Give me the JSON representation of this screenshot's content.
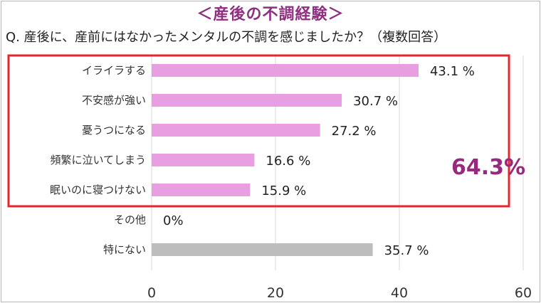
{
  "title": "＜産後の不調経験＞",
  "question": "Q.  産後に、産前にはなかったメンタルの不調を感じましたか？（複数回答）",
  "highlight": {
    "total_label": "64.3%",
    "box_color": "#e8242c",
    "text_color": "#962a7d"
  },
  "colors": {
    "primary_bar": "#e89ee0",
    "other_bar": "#bdbdbd",
    "title": "#8f2f80"
  },
  "chart_data": {
    "type": "bar",
    "orientation": "horizontal",
    "categories": [
      "イライラする",
      "不安感が強い",
      "憂うつになる",
      "頻繁に泣いてしまう",
      "眠いのに寝つけない",
      "その他",
      "特にない"
    ],
    "values": [
      43.1,
      30.7,
      27.2,
      16.6,
      15.9,
      0,
      35.7
    ],
    "value_labels": [
      "43.1 %",
      "30.7 %",
      "27.2 %",
      "16.6 %",
      "15.9 %",
      "0%",
      "35.7 %"
    ],
    "bar_colors": [
      "#e89ee0",
      "#e89ee0",
      "#e89ee0",
      "#e89ee0",
      "#e89ee0",
      "#e89ee0",
      "#bdbdbd"
    ],
    "xlim": [
      0,
      60
    ],
    "xticks": [
      0,
      20,
      40,
      60
    ],
    "xtick_labels": [
      "0",
      "20",
      "40",
      "60"
    ],
    "grid": true,
    "highlighted_categories": [
      "イライラする",
      "不安感が強い",
      "憂うつになる",
      "頻繁に泣いてしまう",
      "眠いのに寝つけない"
    ]
  }
}
